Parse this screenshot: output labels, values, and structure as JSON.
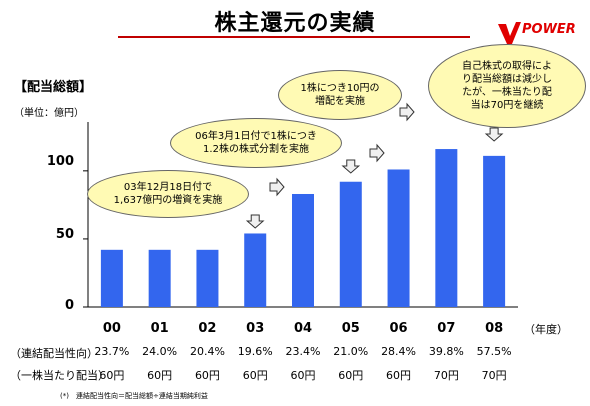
{
  "page": {
    "title": "株主還元の実績",
    "logo_text": "POWER",
    "section_label": "【配当総額】",
    "unit_label": "（単位：億円）",
    "x_unit": "（年度）",
    "footnote": "(*)　連結配当性向＝配当総額÷連結当期純利益",
    "colors": {
      "bar": "#3366ee",
      "title_line": "#c00000",
      "logo": "#e00000",
      "bubble": "#fffab4"
    }
  },
  "annotations": {
    "a03": [
      "03年12月18日付で",
      "1,637億円の増資を実施"
    ],
    "a06": [
      "06年3月1日付で1株につき",
      "1.2株の株式分割を実施"
    ],
    "a07": [
      "1株につき10円の",
      "増配を実施"
    ],
    "a08": [
      "自己株式の取得によ",
      "り配当総額は減少し",
      "たが、一株当たり配",
      "当は70円を継続"
    ]
  },
  "rows": {
    "payout_label": "（連結配当性向）",
    "payout": [
      "23.7%",
      "24.0%",
      "20.4%",
      "19.6%",
      "23.4%",
      "21.0%",
      "28.4%",
      "39.8%",
      "57.5%"
    ],
    "dps_label": "（一株当たり配当）",
    "dps": [
      "60円",
      "60円",
      "60円",
      "60円",
      "60円",
      "60円",
      "60円",
      "70円",
      "70円"
    ]
  },
  "chart_data": {
    "type": "bar",
    "categories": [
      "00",
      "01",
      "02",
      "03",
      "04",
      "05",
      "06",
      "07",
      "08"
    ],
    "values": [
      42,
      42,
      42,
      54,
      83,
      92,
      101,
      116,
      111
    ],
    "ylabel": "（単位：億円）",
    "xlabel": "（年度）",
    "ylim": [
      0,
      130
    ],
    "yticks": [
      0,
      50,
      100
    ],
    "grid": false
  }
}
